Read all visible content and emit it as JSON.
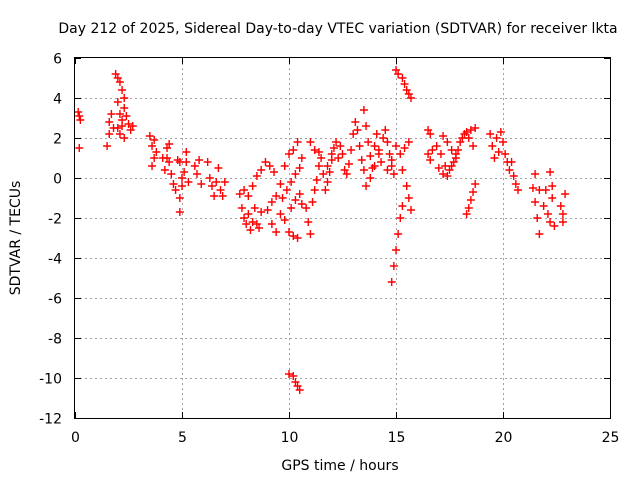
{
  "chart_data": {
    "type": "scatter",
    "title": "Day 212 of 2025, Sidereal Day-to-day VTEC variation (SDTVAR) for receiver lkta",
    "xlabel": "GPS time / hours",
    "ylabel": "SDTVAR / TECUs",
    "xlim": [
      0,
      25
    ],
    "ylim": [
      -12,
      6
    ],
    "xticks": [
      "0",
      "5",
      "10",
      "15",
      "20",
      "25"
    ],
    "yticks": [
      "6",
      "4",
      "2",
      "0",
      "-2",
      "-4",
      "-6",
      "-8",
      "-10",
      "-12"
    ],
    "grid": true,
    "marker": "+",
    "color": "#ff0000",
    "series": [
      {
        "name": "SDTVAR",
        "points": [
          [
            0.15,
            3.3
          ],
          [
            0.2,
            3.1
          ],
          [
            0.25,
            2.9
          ],
          [
            0.2,
            1.5
          ],
          [
            1.5,
            1.6
          ],
          [
            1.6,
            2.2
          ],
          [
            1.6,
            2.8
          ],
          [
            1.7,
            3.2
          ],
          [
            1.8,
            2.5
          ],
          [
            1.9,
            5.2
          ],
          [
            2.0,
            5.0
          ],
          [
            2.1,
            4.8
          ],
          [
            2.2,
            4.4
          ],
          [
            2.3,
            4.0
          ],
          [
            2.0,
            3.8
          ],
          [
            2.1,
            3.2
          ],
          [
            2.2,
            2.9
          ],
          [
            2.3,
            3.5
          ],
          [
            2.4,
            3.1
          ],
          [
            2.0,
            2.5
          ],
          [
            2.1,
            2.2
          ],
          [
            2.2,
            2.6
          ],
          [
            2.3,
            2.0
          ],
          [
            2.5,
            2.7
          ],
          [
            2.6,
            2.4
          ],
          [
            2.7,
            2.6
          ],
          [
            3.5,
            2.1
          ],
          [
            3.6,
            1.6
          ],
          [
            3.7,
            1.0
          ],
          [
            3.6,
            0.6
          ],
          [
            3.7,
            1.9
          ],
          [
            3.8,
            1.3
          ],
          [
            4.1,
            1.0
          ],
          [
            4.2,
            0.4
          ],
          [
            4.3,
            1.5
          ],
          [
            4.4,
            1.7
          ],
          [
            4.3,
            1.0
          ],
          [
            4.4,
            0.8
          ],
          [
            4.5,
            0.2
          ],
          [
            4.6,
            -0.3
          ],
          [
            4.7,
            -0.6
          ],
          [
            4.8,
            0.9
          ],
          [
            4.9,
            0.8
          ],
          [
            5.0,
            0.0
          ],
          [
            4.9,
            -1.0
          ],
          [
            4.9,
            -1.7
          ],
          [
            5.0,
            -0.4
          ],
          [
            5.1,
            0.3
          ],
          [
            5.2,
            1.3
          ],
          [
            5.2,
            0.8
          ],
          [
            5.3,
            -0.2
          ],
          [
            5.6,
            0.6
          ],
          [
            5.7,
            0.2
          ],
          [
            5.8,
            0.9
          ],
          [
            5.9,
            -0.3
          ],
          [
            6.2,
            0.8
          ],
          [
            6.3,
            0.0
          ],
          [
            6.4,
            -0.4
          ],
          [
            6.5,
            -0.9
          ],
          [
            6.6,
            -0.2
          ],
          [
            6.7,
            0.5
          ],
          [
            6.8,
            -0.6
          ],
          [
            6.9,
            -0.9
          ],
          [
            7.0,
            -0.2
          ],
          [
            7.7,
            -0.8
          ],
          [
            7.8,
            -1.5
          ],
          [
            7.9,
            -2.0
          ],
          [
            8.0,
            -2.3
          ],
          [
            8.1,
            -1.8
          ],
          [
            8.2,
            -2.6
          ],
          [
            8.3,
            -2.2
          ],
          [
            8.4,
            -1.5
          ],
          [
            8.5,
            -2.3
          ],
          [
            8.6,
            -2.5
          ],
          [
            8.7,
            -1.7
          ],
          [
            7.9,
            -0.6
          ],
          [
            8.1,
            -0.9
          ],
          [
            8.3,
            -0.4
          ],
          [
            8.5,
            0.1
          ],
          [
            8.7,
            0.4
          ],
          [
            8.9,
            0.8
          ],
          [
            9.1,
            0.6
          ],
          [
            9.3,
            0.3
          ],
          [
            9.0,
            -1.6
          ],
          [
            9.2,
            -2.3
          ],
          [
            9.4,
            -2.7
          ],
          [
            9.2,
            -1.2
          ],
          [
            9.4,
            -0.9
          ],
          [
            9.6,
            -0.3
          ],
          [
            9.8,
            0.6
          ],
          [
            10.0,
            1.2
          ],
          [
            10.2,
            1.4
          ],
          [
            10.4,
            1.8
          ],
          [
            9.6,
            -1.8
          ],
          [
            9.8,
            -2.1
          ],
          [
            10.0,
            -2.7
          ],
          [
            10.2,
            -2.9
          ],
          [
            10.4,
            -3.0
          ],
          [
            9.7,
            -1.0
          ],
          [
            9.9,
            -0.6
          ],
          [
            10.1,
            -0.2
          ],
          [
            10.3,
            0.2
          ],
          [
            10.5,
            0.5
          ],
          [
            10.6,
            1.0
          ],
          [
            10.1,
            -1.5
          ],
          [
            10.3,
            -1.1
          ],
          [
            10.5,
            -0.8
          ],
          [
            10.6,
            -1.3
          ],
          [
            10.0,
            -9.8
          ],
          [
            10.2,
            -9.9
          ],
          [
            10.3,
            -10.2
          ],
          [
            10.4,
            -10.4
          ],
          [
            10.5,
            -10.6
          ],
          [
            10.8,
            -1.5
          ],
          [
            10.9,
            -2.2
          ],
          [
            11.0,
            -2.8
          ],
          [
            11.1,
            -1.2
          ],
          [
            11.2,
            -0.6
          ],
          [
            11.3,
            -0.1
          ],
          [
            11.4,
            0.6
          ],
          [
            11.5,
            1.0
          ],
          [
            11.0,
            1.8
          ],
          [
            11.2,
            1.4
          ],
          [
            11.4,
            1.3
          ],
          [
            11.7,
            -0.6
          ],
          [
            11.8,
            -0.2
          ],
          [
            11.9,
            0.3
          ],
          [
            12.0,
            0.9
          ],
          [
            12.1,
            1.5
          ],
          [
            12.2,
            1.8
          ],
          [
            11.6,
            0.2
          ],
          [
            11.8,
            0.6
          ],
          [
            12.0,
            1.2
          ],
          [
            12.3,
            1.0
          ],
          [
            12.4,
            1.6
          ],
          [
            12.5,
            1.2
          ],
          [
            12.6,
            0.4
          ],
          [
            12.7,
            0.2
          ],
          [
            12.8,
            0.7
          ],
          [
            12.9,
            1.4
          ],
          [
            13.0,
            2.2
          ],
          [
            13.1,
            2.8
          ],
          [
            13.2,
            2.4
          ],
          [
            13.3,
            1.6
          ],
          [
            13.4,
            0.9
          ],
          [
            13.5,
            0.4
          ],
          [
            13.5,
            3.4
          ],
          [
            13.6,
            2.6
          ],
          [
            13.7,
            1.8
          ],
          [
            13.8,
            1.1
          ],
          [
            13.9,
            0.5
          ],
          [
            14.0,
            1.6
          ],
          [
            14.1,
            2.2
          ],
          [
            14.2,
            1.4
          ],
          [
            14.3,
            0.8
          ],
          [
            13.6,
            -0.4
          ],
          [
            13.8,
            0.0
          ],
          [
            14.0,
            0.6
          ],
          [
            14.2,
            1.2
          ],
          [
            14.4,
            2.0
          ],
          [
            14.5,
            2.4
          ],
          [
            14.6,
            1.8
          ],
          [
            14.7,
            1.2
          ],
          [
            14.8,
            0.6
          ],
          [
            14.9,
            0.2
          ],
          [
            14.6,
            0.4
          ],
          [
            14.8,
            0.9
          ],
          [
            15.0,
            1.6
          ],
          [
            15.2,
            1.2
          ],
          [
            15.4,
            1.5
          ],
          [
            15.6,
            1.8
          ],
          [
            15.3,
            0.4
          ],
          [
            15.5,
            -0.4
          ],
          [
            15.6,
            -1.0
          ],
          [
            15.7,
            -1.6
          ],
          [
            14.8,
            -5.2
          ],
          [
            14.9,
            -4.4
          ],
          [
            15.0,
            -3.6
          ],
          [
            15.1,
            -2.8
          ],
          [
            15.2,
            -2.0
          ],
          [
            15.3,
            -1.4
          ],
          [
            15.0,
            5.4
          ],
          [
            15.1,
            5.2
          ],
          [
            15.3,
            5.0
          ],
          [
            15.4,
            4.7
          ],
          [
            15.5,
            4.4
          ],
          [
            15.6,
            4.2
          ],
          [
            15.7,
            4.0
          ],
          [
            16.5,
            2.4
          ],
          [
            16.6,
            2.2
          ],
          [
            16.5,
            1.2
          ],
          [
            16.6,
            0.9
          ],
          [
            16.7,
            1.4
          ],
          [
            16.9,
            1.6
          ],
          [
            17.1,
            1.2
          ],
          [
            17.3,
            0.6
          ],
          [
            17.5,
            0.4
          ],
          [
            17.7,
            0.8
          ],
          [
            17.9,
            1.4
          ],
          [
            18.1,
            2.0
          ],
          [
            18.3,
            2.3
          ],
          [
            18.5,
            2.4
          ],
          [
            18.7,
            2.5
          ],
          [
            17.0,
            0.5
          ],
          [
            17.2,
            0.2
          ],
          [
            17.4,
            0.1
          ],
          [
            17.6,
            0.6
          ],
          [
            17.8,
            1.2
          ],
          [
            18.0,
            1.8
          ],
          [
            18.2,
            2.2
          ],
          [
            18.4,
            2.0
          ],
          [
            18.6,
            1.6
          ],
          [
            17.2,
            2.1
          ],
          [
            17.4,
            1.8
          ],
          [
            17.6,
            1.4
          ],
          [
            17.8,
            1.0
          ],
          [
            18.3,
            -1.8
          ],
          [
            18.4,
            -1.5
          ],
          [
            18.5,
            -1.1
          ],
          [
            18.6,
            -0.7
          ],
          [
            18.7,
            -0.3
          ],
          [
            19.4,
            2.2
          ],
          [
            19.5,
            1.6
          ],
          [
            19.6,
            1.0
          ],
          [
            19.7,
            2.0
          ],
          [
            19.8,
            1.3
          ],
          [
            19.9,
            2.3
          ],
          [
            20.0,
            1.8
          ],
          [
            20.1,
            1.2
          ],
          [
            20.2,
            0.8
          ],
          [
            20.3,
            0.4
          ],
          [
            20.4,
            0.8
          ],
          [
            20.5,
            0.1
          ],
          [
            20.6,
            -0.3
          ],
          [
            20.7,
            -0.6
          ],
          [
            21.4,
            -0.5
          ],
          [
            21.5,
            -1.2
          ],
          [
            21.6,
            -2.0
          ],
          [
            21.7,
            -2.8
          ],
          [
            21.5,
            0.2
          ],
          [
            21.7,
            -0.6
          ],
          [
            21.9,
            -1.4
          ],
          [
            22.0,
            -0.6
          ],
          [
            22.1,
            -1.8
          ],
          [
            22.2,
            -2.2
          ],
          [
            22.3,
            -1.0
          ],
          [
            22.4,
            -2.4
          ],
          [
            22.2,
            0.3
          ],
          [
            22.3,
            -0.4
          ],
          [
            22.7,
            -1.4
          ],
          [
            22.8,
            -2.2
          ],
          [
            22.9,
            -0.8
          ],
          [
            22.8,
            -1.8
          ]
        ]
      }
    ]
  }
}
